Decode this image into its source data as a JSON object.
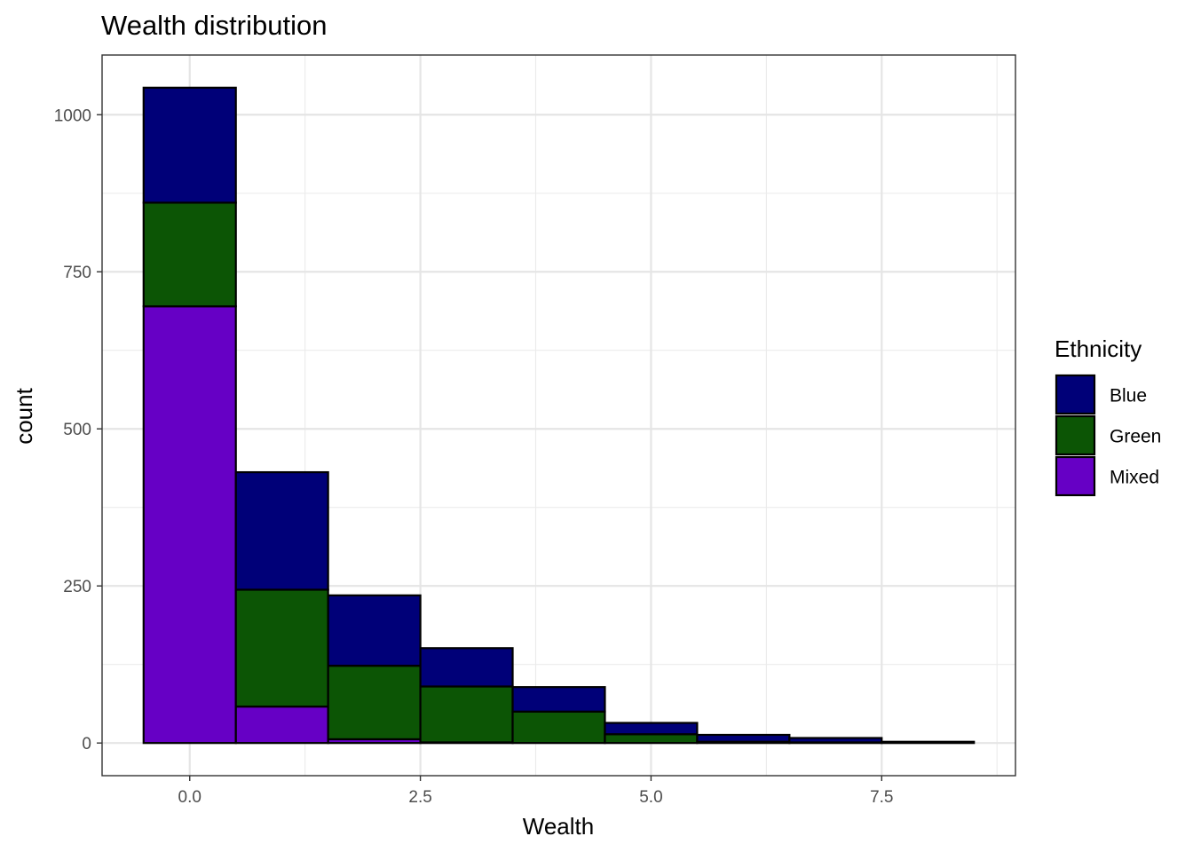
{
  "chart_data": {
    "type": "bar",
    "stacked": true,
    "title": "Wealth distribution",
    "xlabel": "Wealth",
    "ylabel": "count",
    "bins": [
      {
        "xmin": -0.5,
        "xmax": 0.5
      },
      {
        "xmin": 0.5,
        "xmax": 1.5
      },
      {
        "xmin": 1.5,
        "xmax": 2.5
      },
      {
        "xmin": 2.5,
        "xmax": 3.5
      },
      {
        "xmin": 3.5,
        "xmax": 4.5
      },
      {
        "xmin": 4.5,
        "xmax": 5.5
      },
      {
        "xmin": 5.5,
        "xmax": 6.5
      },
      {
        "xmin": 6.5,
        "xmax": 7.5
      },
      {
        "xmin": 7.5,
        "xmax": 8.5
      }
    ],
    "series": [
      {
        "name": "Mixed",
        "color": "#6600c5",
        "values": [
          695,
          58,
          6,
          1,
          0,
          0,
          0,
          0,
          0
        ]
      },
      {
        "name": "Green",
        "color": "#0c5505",
        "values": [
          165,
          186,
          117,
          89,
          50,
          14,
          2,
          1,
          0
        ]
      },
      {
        "name": "Blue",
        "color": "#000078",
        "values": [
          183,
          187,
          112,
          61,
          39,
          18,
          11,
          7,
          2
        ]
      }
    ],
    "xlim": [
      -0.95,
      8.95
    ],
    "ylim": [
      -52,
      1095
    ],
    "x_ticks": [
      0.0,
      2.5,
      5.0,
      7.5
    ],
    "x_tick_labels": [
      "0.0",
      "2.5",
      "5.0",
      "7.5"
    ],
    "y_ticks": [
      0,
      250,
      500,
      750,
      1000
    ],
    "y_tick_labels": [
      "0",
      "250",
      "500",
      "750",
      "1000"
    ],
    "grid": true,
    "legend": {
      "title": "Ethnicity",
      "position": "right",
      "items": [
        {
          "label": "Blue",
          "color": "#000078"
        },
        {
          "label": "Green",
          "color": "#0c5505"
        },
        {
          "label": "Mixed",
          "color": "#6600c5"
        }
      ]
    }
  }
}
